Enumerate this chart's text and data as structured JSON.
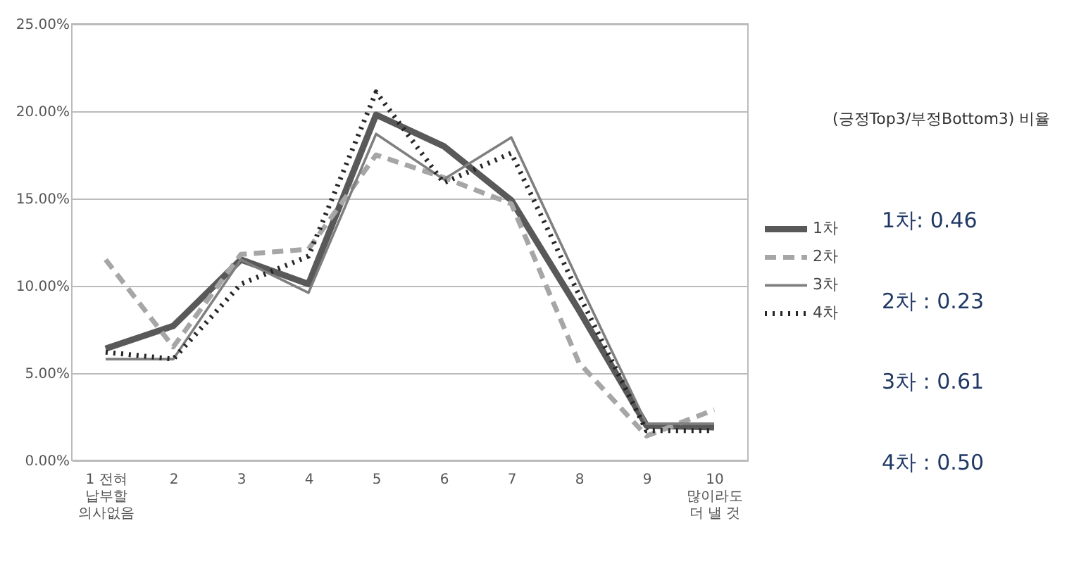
{
  "chart_data": {
    "type": "line",
    "categories": [
      "1 전혀\n납부할\n의사없음",
      "2",
      "3",
      "4",
      "5",
      "6",
      "7",
      "8",
      "9",
      "10\n많이라도\n더 낼 것"
    ],
    "series": [
      {
        "name": "1차",
        "color": "#595959",
        "line_style": "solid",
        "values": [
          6.4,
          7.7,
          11.5,
          10.1,
          19.8,
          18.0,
          14.9,
          8.6,
          2.0,
          1.9
        ]
      },
      {
        "name": "2차",
        "color": "#a6a6a6",
        "line_style": "dashed",
        "values": [
          11.5,
          6.5,
          11.8,
          12.1,
          17.5,
          16.2,
          14.7,
          5.6,
          1.4,
          2.9
        ]
      },
      {
        "name": "3차",
        "color": "#7f7f7f",
        "line_style": "solid",
        "values": [
          5.8,
          5.8,
          11.5,
          9.6,
          18.7,
          16.1,
          18.5,
          10.2,
          2.1,
          2.1
        ]
      },
      {
        "name": "4차",
        "color": "#262626",
        "line_style": "dotted",
        "values": [
          6.2,
          5.8,
          10.1,
          11.7,
          21.1,
          15.9,
          17.6,
          9.5,
          1.7,
          1.7
        ]
      }
    ],
    "ylim": [
      0,
      25
    ],
    "yticks": [
      {
        "value": 0,
        "label": "0.00%"
      },
      {
        "value": 5,
        "label": "5.00%"
      },
      {
        "value": 10,
        "label": "10.00%"
      },
      {
        "value": 15,
        "label": "15.00%"
      },
      {
        "value": 20,
        "label": "20.00%"
      },
      {
        "value": 25,
        "label": "25.00%"
      }
    ],
    "grid": "y",
    "legend": "right",
    "marker": "none",
    "annotations": [
      "(긍정Top3/부정Bottom3) 비율",
      "1차:  0.46",
      "2차 : 0.23",
      "3차 : 0.61",
      "4차 : 0.50"
    ]
  }
}
